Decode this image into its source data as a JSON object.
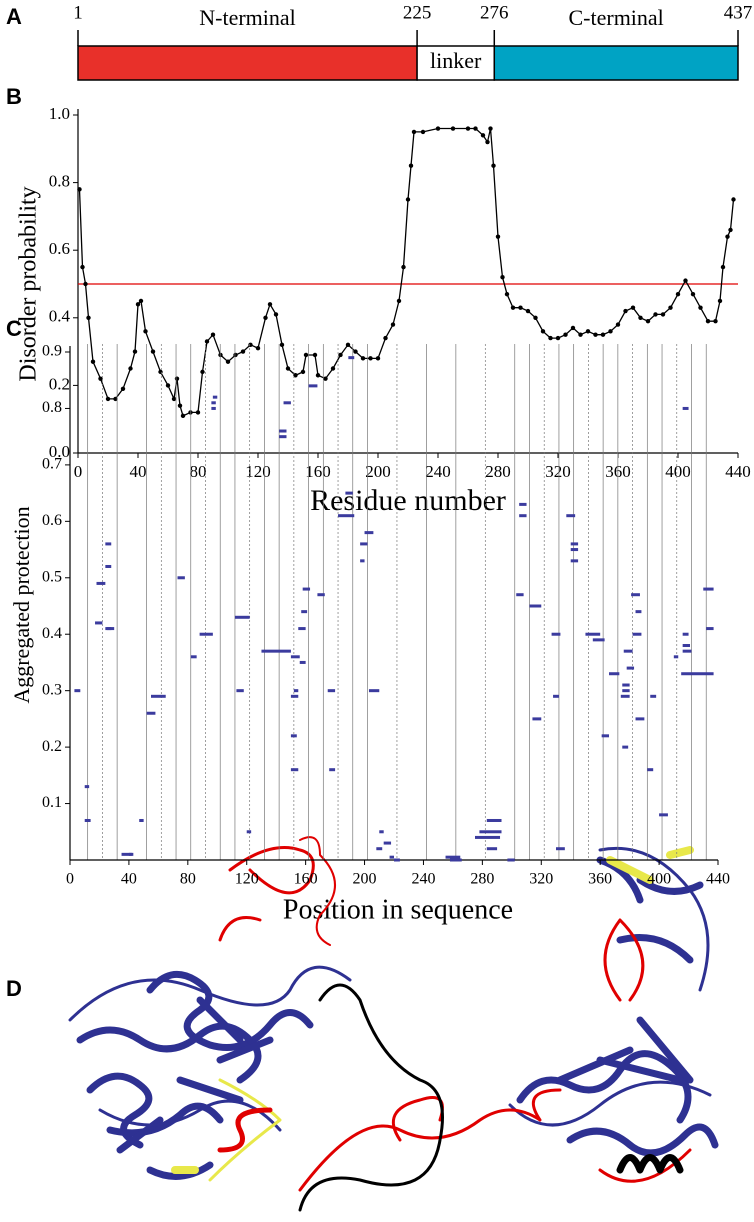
{
  "panel_labels": [
    "A",
    "B",
    "C",
    "D"
  ],
  "chart_data": [
    {
      "type": "domain",
      "categories": [
        "N-terminal",
        "linker",
        "C-terminal"
      ],
      "colors": [
        "#e8302a",
        "#ffffff",
        "#00a3c4"
      ],
      "xlim": [
        1,
        437
      ],
      "xticks": [
        1,
        225,
        276,
        437
      ]
    },
    {
      "type": "line",
      "xlabel": "Residue number",
      "ylabel": "Disorder probability",
      "color": "#000000",
      "threshold": 0.5,
      "threshold_color": "#e00000",
      "xlim": [
        0,
        440
      ],
      "xticks": [
        0,
        40,
        80,
        120,
        160,
        200,
        240,
        280,
        320,
        360,
        400,
        440
      ],
      "ylim": [
        0,
        1
      ],
      "yticks": [
        {
          "value": 0,
          "label": "0.0"
        },
        0.2,
        0.4,
        0.6,
        0.8,
        {
          "value": 1,
          "label": "1.0"
        }
      ],
      "x": [
        1,
        3,
        5,
        7,
        10,
        15,
        20,
        25,
        30,
        35,
        38,
        40,
        42,
        45,
        50,
        55,
        60,
        64,
        66,
        68,
        70,
        75,
        80,
        83,
        86,
        90,
        95,
        100,
        105,
        110,
        115,
        120,
        125,
        128,
        132,
        136,
        140,
        145,
        150,
        152,
        158,
        160,
        165,
        170,
        175,
        180,
        185,
        190,
        195,
        200,
        205,
        210,
        214,
        217,
        220,
        222,
        224,
        230,
        240,
        250,
        260,
        265,
        270,
        273,
        275,
        277,
        280,
        283,
        286,
        290,
        295,
        300,
        305,
        310,
        315,
        320,
        325,
        330,
        335,
        340,
        345,
        350,
        355,
        360,
        365,
        370,
        375,
        380,
        385,
        390,
        395,
        400,
        405,
        410,
        415,
        420,
        425,
        428,
        430,
        433,
        435,
        437
      ],
      "values": [
        0.78,
        0.55,
        0.5,
        0.4,
        0.27,
        0.22,
        0.16,
        0.16,
        0.19,
        0.25,
        0.3,
        0.44,
        0.45,
        0.36,
        0.3,
        0.24,
        0.2,
        0.16,
        0.22,
        0.14,
        0.11,
        0.12,
        0.12,
        0.24,
        0.33,
        0.35,
        0.29,
        0.27,
        0.29,
        0.3,
        0.32,
        0.31,
        0.4,
        0.44,
        0.41,
        0.32,
        0.25,
        0.23,
        0.24,
        0.29,
        0.29,
        0.23,
        0.22,
        0.25,
        0.29,
        0.32,
        0.3,
        0.28,
        0.28,
        0.28,
        0.34,
        0.38,
        0.45,
        0.55,
        0.75,
        0.85,
        0.95,
        0.95,
        0.96,
        0.96,
        0.96,
        0.96,
        0.94,
        0.92,
        0.96,
        0.85,
        0.64,
        0.52,
        0.47,
        0.43,
        0.43,
        0.42,
        0.4,
        0.36,
        0.34,
        0.34,
        0.35,
        0.37,
        0.35,
        0.36,
        0.35,
        0.35,
        0.36,
        0.38,
        0.42,
        0.43,
        0.4,
        0.39,
        0.41,
        0.41,
        0.43,
        0.47,
        0.51,
        0.47,
        0.43,
        0.39,
        0.39,
        0.45,
        0.55,
        0.64,
        0.66,
        0.75
      ]
    },
    {
      "type": "range",
      "xlabel": "Position in sequence",
      "ylabel": "Aggregated protection",
      "color": "#3b3b9e",
      "xlim": [
        0,
        440
      ],
      "xticks": [
        0,
        40,
        80,
        120,
        160,
        200,
        240,
        280,
        320,
        360,
        400,
        440
      ],
      "ylim": [
        0,
        0.9
      ],
      "yticks": [
        0.1,
        0.2,
        0.3,
        0.4,
        0.5,
        0.6,
        0.7,
        0.8,
        0.9
      ],
      "dividers": [
        12,
        22,
        32,
        52,
        62,
        72,
        82,
        92,
        102,
        112,
        122,
        132,
        142,
        152,
        162,
        172,
        182,
        192,
        202,
        222,
        242,
        262,
        282,
        302,
        312,
        322,
        332,
        342,
        352,
        362,
        372,
        382,
        392,
        402,
        412,
        422,
        432
      ],
      "x_start": [
        3,
        10,
        10,
        17,
        18,
        24,
        24,
        24,
        25,
        35,
        40,
        47,
        52,
        55,
        73,
        82,
        88,
        96,
        97,
        96,
        112,
        113,
        120,
        130,
        142,
        142,
        145,
        150,
        150,
        150,
        150,
        152,
        155,
        156,
        157,
        158,
        162,
        168,
        175,
        176,
        182,
        187,
        189,
        197,
        197,
        200,
        203,
        208,
        210,
        213,
        217,
        220,
        255,
        258,
        275,
        278,
        283,
        283,
        297,
        303,
        305,
        305,
        312,
        314,
        327,
        328,
        330,
        337,
        340,
        340,
        340,
        350,
        355,
        361,
        366,
        375,
        375,
        374,
        375,
        376,
        378,
        381,
        384,
        382,
        384,
        392,
        394,
        400,
        410,
        416,
        416,
        416,
        416,
        415,
        430,
        432
      ],
      "x_end": [
        7,
        13,
        14,
        22,
        24,
        28,
        28,
        30,
        28,
        42,
        43,
        50,
        58,
        65,
        78,
        86,
        97,
        99,
        100,
        99,
        122,
        118,
        123,
        150,
        147,
        147,
        150,
        156,
        155,
        154,
        155,
        155,
        160,
        160,
        161,
        163,
        168,
        173,
        180,
        180,
        193,
        192,
        193,
        202,
        200,
        206,
        210,
        212,
        213,
        218,
        220,
        224,
        265,
        266,
        292,
        293,
        293,
        290,
        302,
        308,
        310,
        310,
        320,
        320,
        333,
        332,
        336,
        343,
        345,
        345,
        345,
        360,
        363,
        366,
        373,
        379,
        380,
        380,
        380,
        382,
        383,
        387,
        388,
        388,
        390,
        396,
        398,
        406,
        413,
        420,
        420,
        421,
        422,
        437,
        437,
        437
      ],
      "values": [
        0.3,
        0.13,
        0.07,
        0.42,
        0.49,
        0.56,
        0.52,
        0.41,
        0.41,
        0.01,
        0.01,
        0.07,
        0.26,
        0.29,
        0.5,
        0.36,
        0.4,
        0.81,
        0.82,
        0.8,
        0.43,
        0.3,
        0.05,
        0.37,
        0.75,
        0.76,
        0.81,
        0.36,
        0.29,
        0.22,
        0.16,
        0.3,
        0.41,
        0.35,
        0.44,
        0.48,
        0.84,
        0.47,
        0.3,
        0.16,
        0.61,
        0.65,
        0.89,
        0.56,
        0.53,
        0.58,
        0.3,
        0.02,
        0.05,
        0.03,
        0.005,
        0.0,
        0.005,
        0.0,
        0.04,
        0.05,
        0.07,
        0.02,
        0.0,
        0.47,
        0.63,
        0.61,
        0.45,
        0.25,
        0.4,
        0.29,
        0.02,
        0.61,
        0.56,
        0.55,
        0.53,
        0.4,
        0.39,
        0.22,
        0.33,
        0.2,
        0.3,
        0.29,
        0.31,
        0.37,
        0.34,
        0.47,
        0.44,
        0.4,
        0.25,
        0.16,
        0.29,
        0.08,
        0.36,
        0.8,
        0.4,
        0.38,
        0.37,
        0.33,
        0.48,
        0.41
      ]
    }
  ]
}
